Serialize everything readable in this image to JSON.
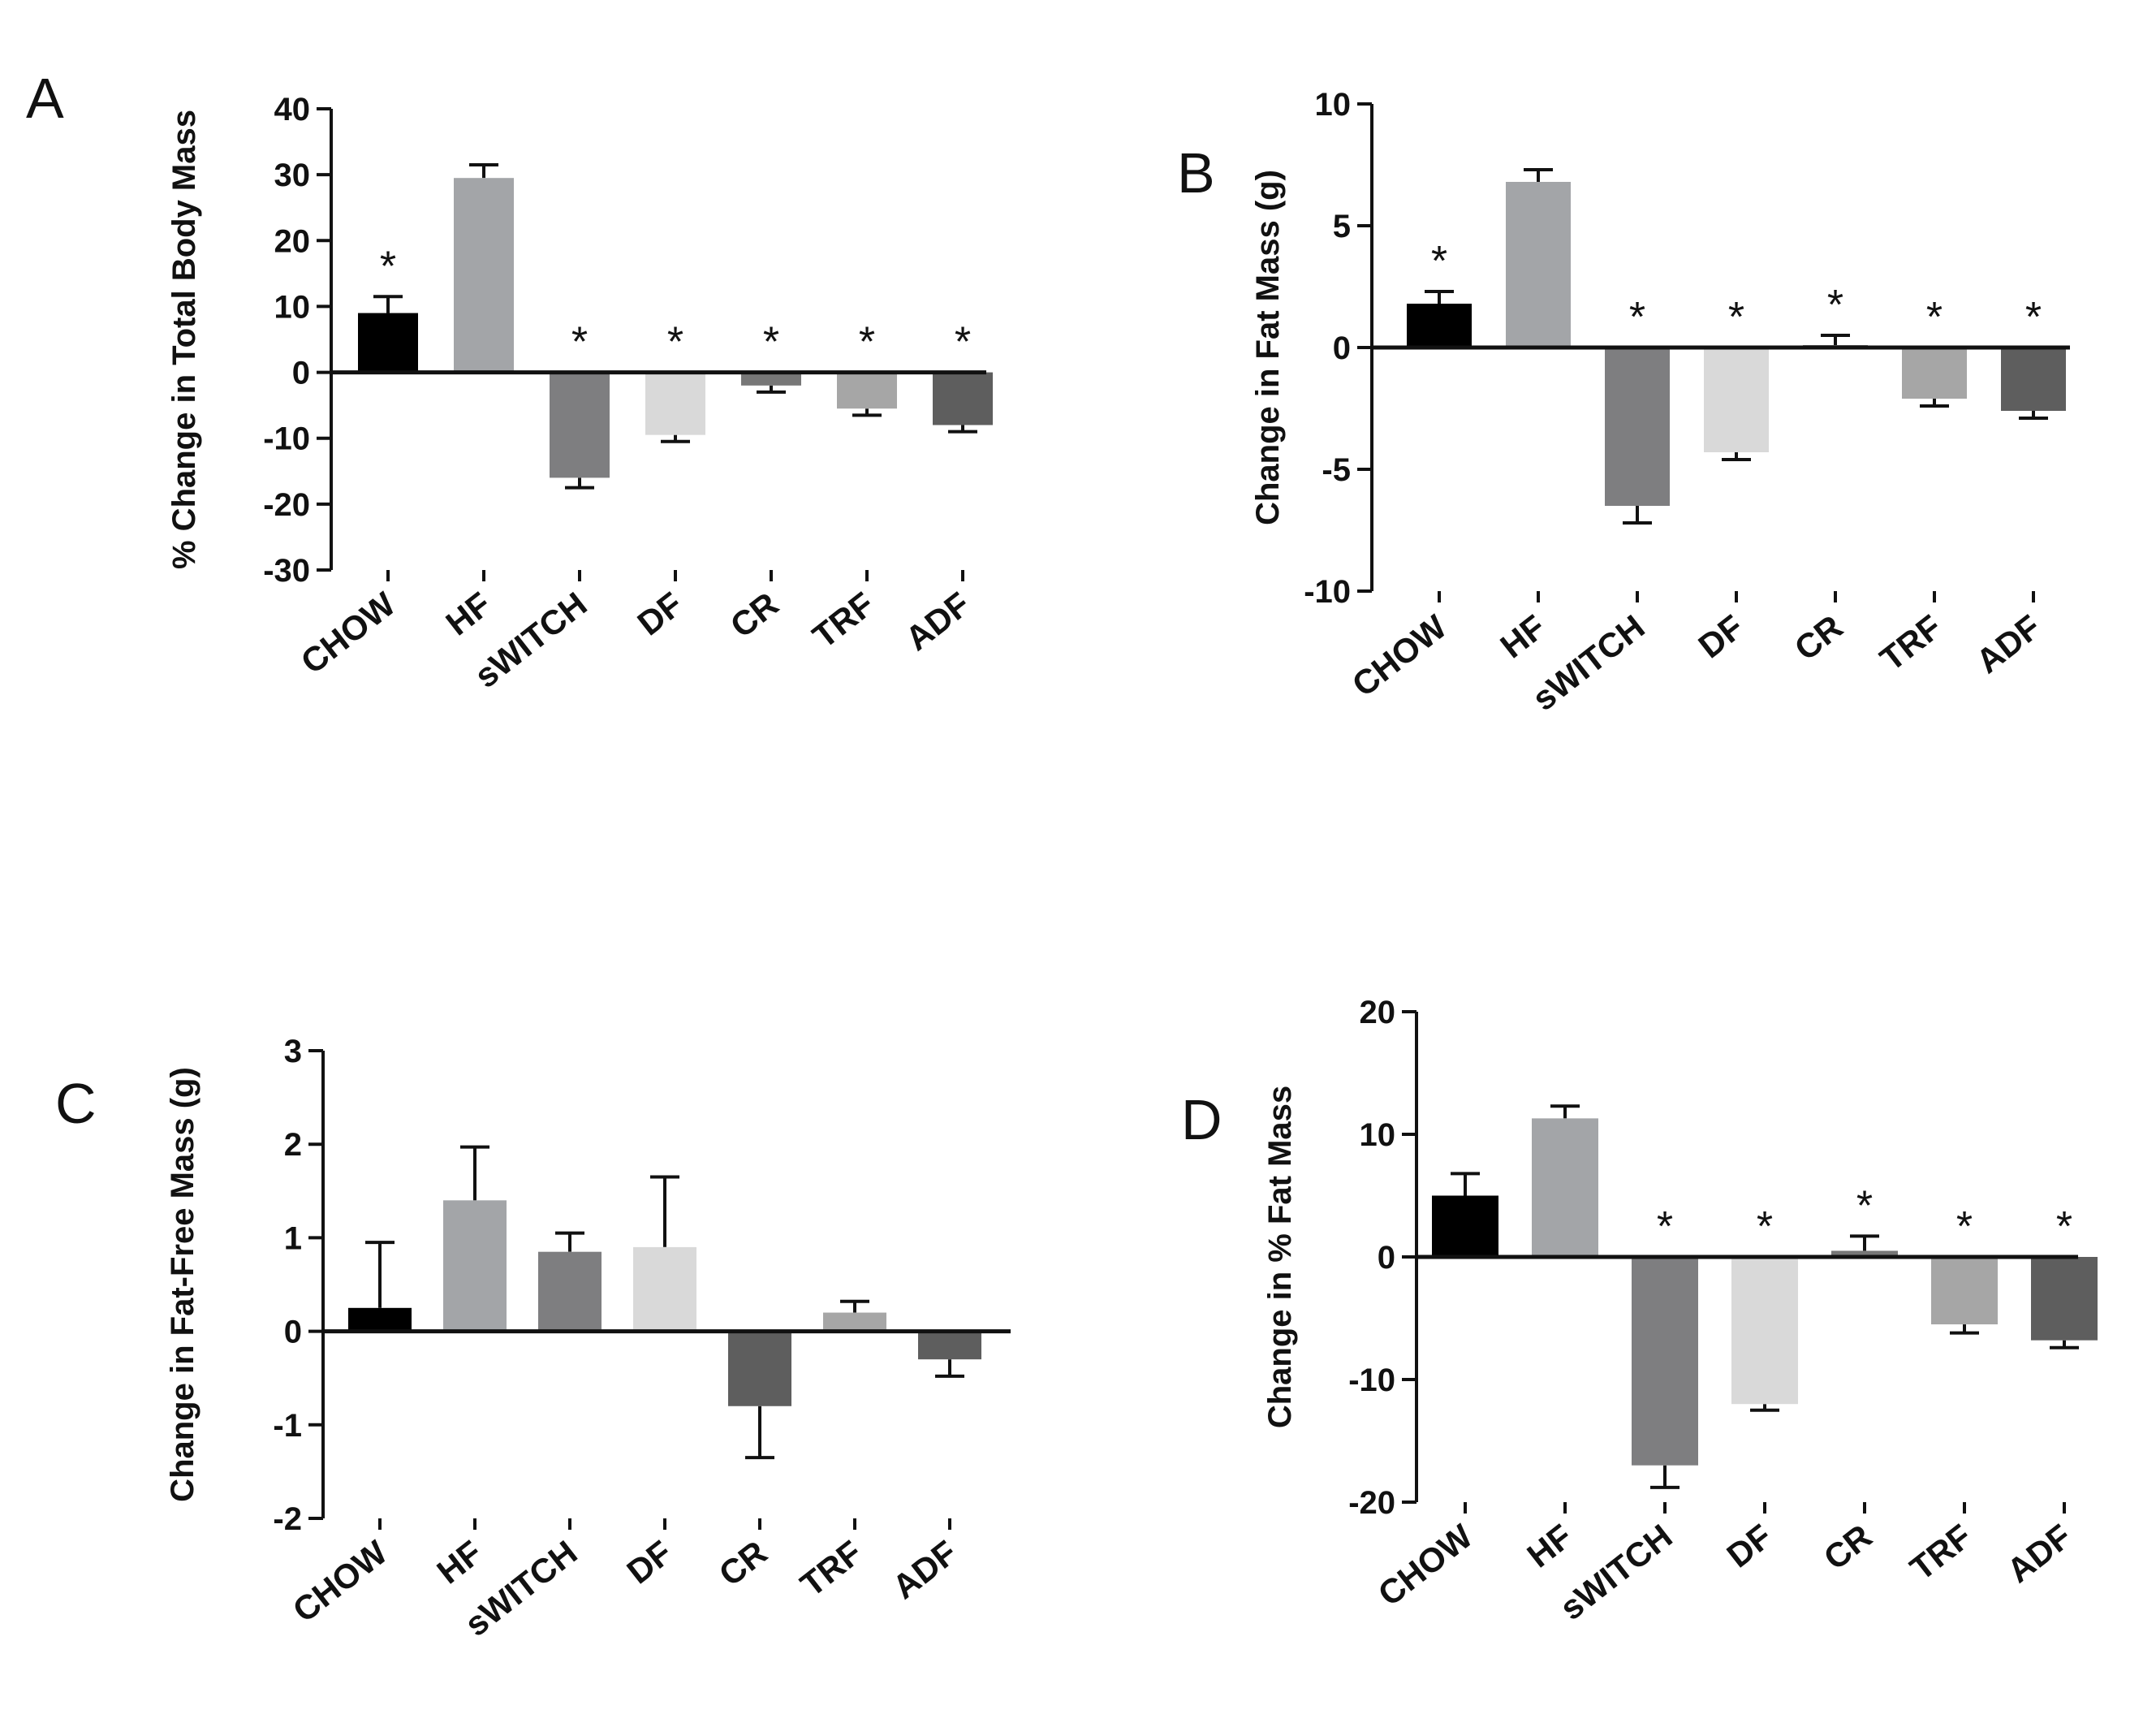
{
  "chart_data": [
    {
      "type": "bar",
      "panel": "A",
      "ylabel": "%  Change in Total Body Mass",
      "ylim": [
        -30,
        40
      ],
      "yticks": [
        40,
        30,
        20,
        10,
        0,
        -10,
        -20,
        -30
      ],
      "categories": [
        "CHOW",
        "HF",
        "sWITCH",
        "DF",
        "CR",
        "TRF",
        "ADF"
      ],
      "values": [
        9,
        29.5,
        -16,
        -9.5,
        -2,
        -5.5,
        -8
      ],
      "errors": [
        2.5,
        2,
        1.5,
        1,
        1,
        1,
        1
      ],
      "significance": [
        "*",
        "",
        "*",
        "*",
        "*",
        "*",
        "*"
      ],
      "colors": [
        "#000000",
        "#a3a5a8",
        "#7e7e80",
        "#d9d9d9",
        "#777777",
        "#a6a6a6",
        "#5e5e5e"
      ]
    },
    {
      "type": "bar",
      "panel": "B",
      "ylabel": "Change in Fat Mass (g)",
      "ylim": [
        -10,
        10
      ],
      "yticks": [
        10,
        5,
        0,
        -5,
        -10
      ],
      "categories": [
        "CHOW",
        "HF",
        "sWITCH",
        "DF",
        "CR",
        "TRF",
        "ADF"
      ],
      "values": [
        1.8,
        6.8,
        -6.5,
        -4.3,
        0.1,
        -2.1,
        -2.6
      ],
      "errors": [
        0.5,
        0.5,
        0.7,
        0.3,
        0.4,
        0.3,
        0.3
      ],
      "significance": [
        "*",
        "",
        "*",
        "*",
        "*",
        "*",
        "*"
      ],
      "colors": [
        "#000000",
        "#a3a5a8",
        "#7e7e80",
        "#d9d9d9",
        "#777777",
        "#a6a6a6",
        "#5e5e5e"
      ]
    },
    {
      "type": "bar",
      "panel": "C",
      "ylabel": "Change in Fat-Free Mass (g)",
      "ylim": [
        -2,
        3
      ],
      "yticks": [
        3,
        2,
        1,
        0,
        -1,
        -2
      ],
      "categories": [
        "CHOW",
        "HF",
        "sWITCH",
        "DF",
        "CR",
        "TRF",
        "ADF"
      ],
      "values": [
        0.25,
        1.4,
        0.85,
        0.9,
        -0.8,
        0.2,
        -0.3
      ],
      "errors": [
        0.7,
        0.57,
        0.2,
        0.75,
        0.55,
        0.12,
        0.18
      ],
      "significance": [
        "",
        "",
        "",
        "",
        "",
        "",
        ""
      ],
      "colors": [
        "#000000",
        "#a3a5a8",
        "#7e7e80",
        "#d9d9d9",
        "#5e5e5e",
        "#a6a6a6",
        "#5e5e5e"
      ]
    },
    {
      "type": "bar",
      "panel": "D",
      "ylabel": "Change in % Fat  Mass",
      "ylim": [
        -20,
        20
      ],
      "yticks": [
        20,
        10,
        0,
        -10,
        -20
      ],
      "categories": [
        "CHOW",
        "HF",
        "sWITCH",
        "DF",
        "CR",
        "TRF",
        "ADF"
      ],
      "values": [
        5,
        11.3,
        -17,
        -12,
        0.5,
        -5.5,
        -6.8
      ],
      "errors": [
        1.8,
        1,
        1.8,
        0.5,
        1.2,
        0.7,
        0.6
      ],
      "significance": [
        "",
        "",
        "*",
        "*",
        "*",
        "*",
        "*"
      ],
      "colors": [
        "#000000",
        "#a3a5a8",
        "#7e7e80",
        "#d9d9d9",
        "#777777",
        "#a6a6a6",
        "#5e5e5e"
      ]
    }
  ]
}
